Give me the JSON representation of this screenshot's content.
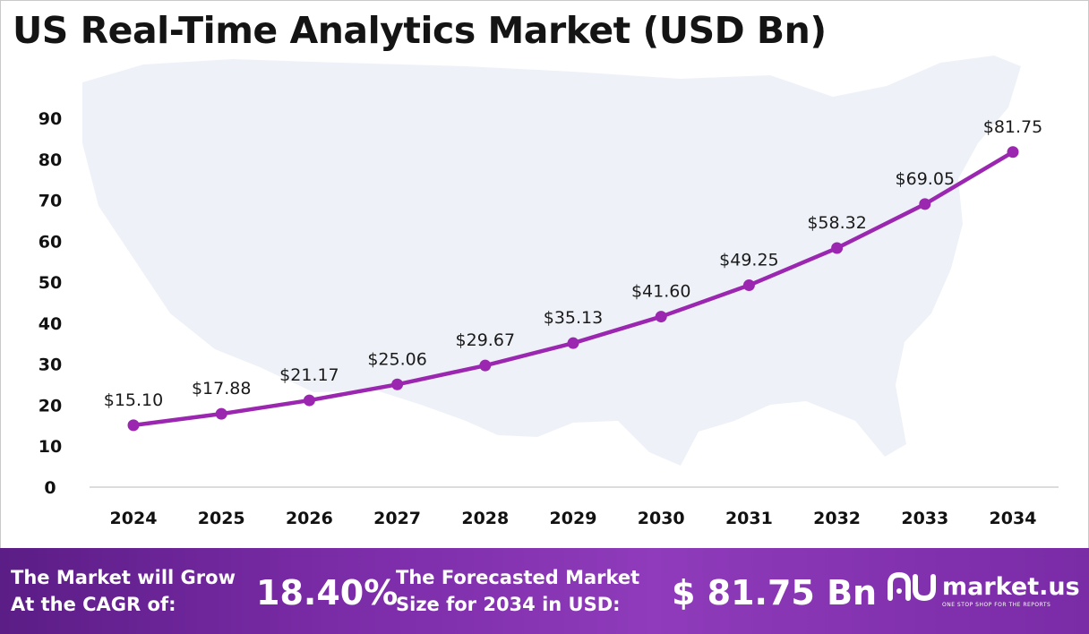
{
  "title": "US Real-Time Analytics Market (USD Bn)",
  "colors": {
    "line": "#9b27b0",
    "map": "#eef2f8",
    "footer_start": "#5b1d86",
    "footer_end": "#8f3bbb"
  },
  "chart_data": {
    "type": "line",
    "title": "US Real-Time Analytics Market (USD Bn)",
    "x": [
      "2024",
      "2025",
      "2026",
      "2027",
      "2028",
      "2029",
      "2030",
      "2031",
      "2032",
      "2033",
      "2034"
    ],
    "series": [
      {
        "values": [
          15.1,
          17.88,
          21.17,
          25.06,
          29.67,
          35.13,
          41.6,
          49.25,
          58.32,
          69.05,
          81.75
        ],
        "labels": [
          "$15.10",
          "$17.88",
          "$21.17",
          "$25.06",
          "$29.67",
          "$35.13",
          "$41.60",
          "$49.25",
          "$58.32",
          "$69.05",
          "$81.75"
        ]
      }
    ],
    "yticks": [
      "0",
      "10",
      "20",
      "30",
      "40",
      "50",
      "60",
      "70",
      "80",
      "90"
    ],
    "ylim": [
      0,
      90
    ],
    "grid": false,
    "legend": "none"
  },
  "footer": {
    "cagr_text_line1": "The Market will Grow",
    "cagr_text_line2": "At the CAGR of:",
    "cagr_value": "18.40%",
    "forecast_text_line1": "The Forecasted Market",
    "forecast_text_line2": "Size for 2034 in USD:",
    "forecast_value": "$ 81.75 Bn",
    "logo_text": "market.us",
    "logo_tagline": "ONE STOP SHOP FOR THE REPORTS",
    "logo_icon": "market-us-logo-icon"
  }
}
